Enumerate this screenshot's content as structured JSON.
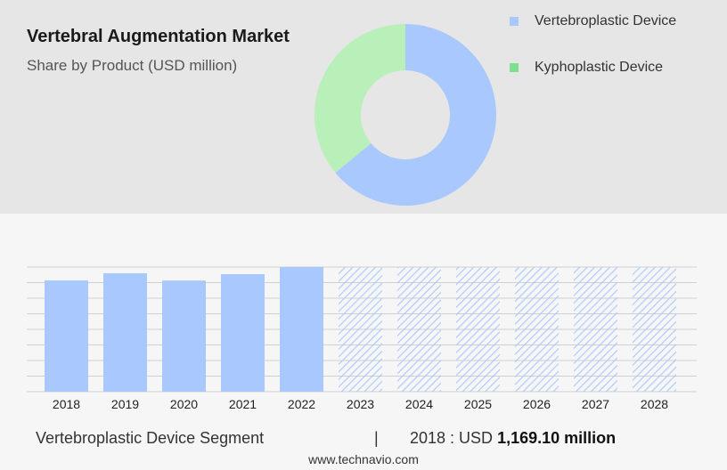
{
  "header": {
    "title": "Vertebral Augmentation Market",
    "subtitle": "Share by Product (USD million)"
  },
  "legend": [
    {
      "label": "Vertebroplastic Device",
      "color": "#a9c8fd"
    },
    {
      "label": "Kyphoplastic Device",
      "color": "#7fdf8f"
    }
  ],
  "chart_data": [
    {
      "type": "pie",
      "variant": "donut",
      "series": [
        {
          "name": "Vertebroplastic Device",
          "value": 64,
          "color": "#a9c8fd"
        },
        {
          "name": "Kyphoplastic Device",
          "value": 36,
          "color": "#b9f0b9"
        }
      ]
    },
    {
      "type": "bar",
      "categories": [
        "2018",
        "2019",
        "2020",
        "2021",
        "2022",
        "2023",
        "2024",
        "2025",
        "2026",
        "2027",
        "2028"
      ],
      "values": [
        1169.1,
        1245,
        1168,
        1235,
        1310,
        null,
        null,
        null,
        null,
        null,
        null
      ],
      "forecast_from": "2023",
      "color": "#a9c8fd",
      "grid": true
    }
  ],
  "footer": {
    "segment": "Vertebroplastic Device Segment",
    "divider": "|",
    "stat_label": "2018 : USD",
    "stat_value": "1,169.10 million",
    "source": "www.technavio.com"
  }
}
